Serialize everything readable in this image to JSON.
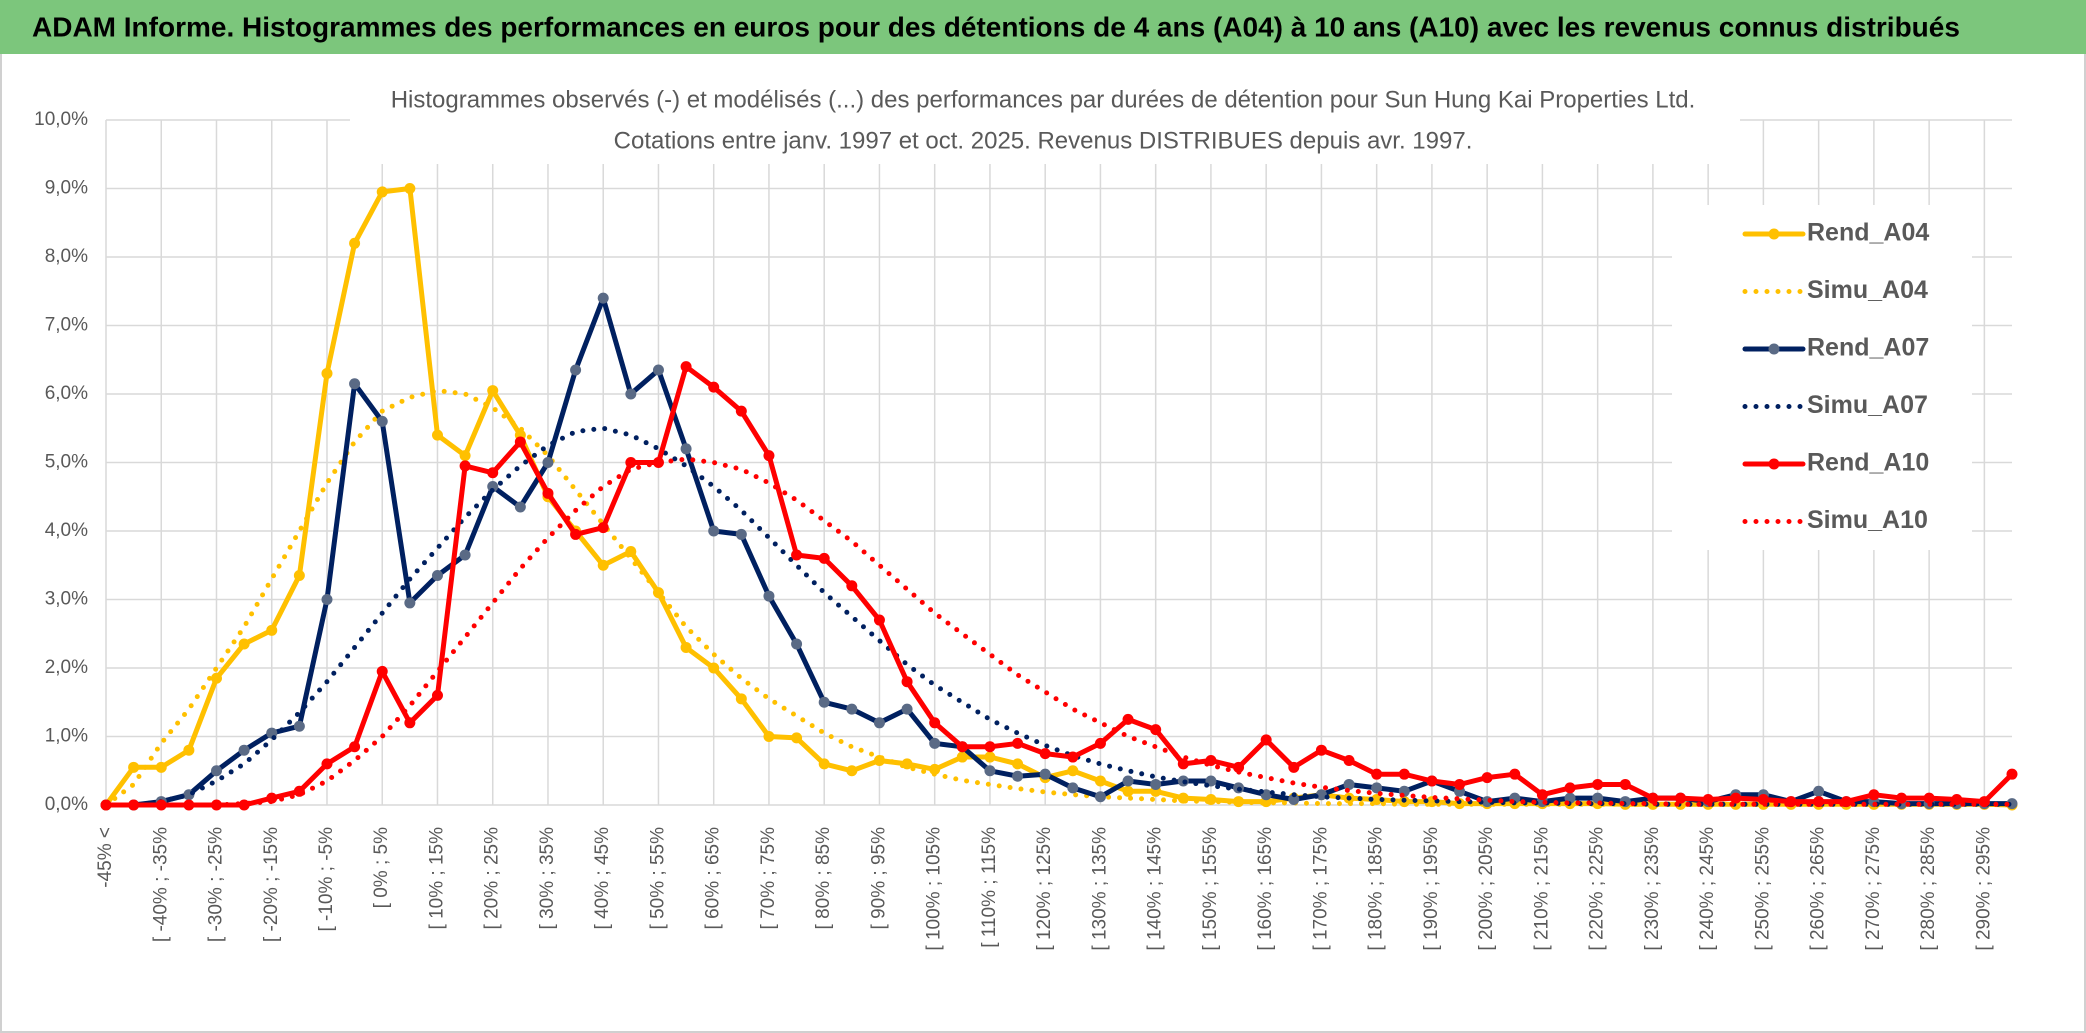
{
  "header": {
    "title": "ADAM Informe. Histogrammes des performances en euros pour des détentions de 4 ans (A04) à 10 ans (A10) avec les revenus connus distribués"
  },
  "chart_data": {
    "type": "line",
    "title": "Histogrammes observés (-) et modélisés (...) des performances par durées de détention pour Sun Hung Kai Properties Ltd.",
    "subtitle": "Cotations entre janv. 1997 et oct. 2025. Revenus DISTRIBUES depuis avr. 1997.",
    "categories": [
      "-45% <",
      null,
      "[ -40% ; -35%",
      null,
      "[ -30% ; -25%",
      null,
      "[ -20% ; -15%",
      null,
      "[ -10% ; -5%",
      null,
      "[ 0% ; 5%",
      null,
      "[ 10% ; 15%",
      null,
      "[ 20% ; 25%",
      null,
      "[ 30% ; 35%",
      null,
      "[ 40% ; 45%",
      null,
      "[ 50% ; 55%",
      null,
      "[ 60% ; 65%",
      null,
      "[ 70% ; 75%",
      null,
      "[ 80% ; 85%",
      null,
      "[ 90% ; 95%",
      null,
      "[ 100% ; 105%",
      null,
      "[ 110% ; 115%",
      null,
      "[ 120% ; 125%",
      null,
      "[ 130% ; 135%",
      null,
      "[ 140% ; 145%",
      null,
      "[ 150% ; 155%",
      null,
      "[ 160% ; 165%",
      null,
      "[ 170% ; 175%",
      null,
      "[ 180% ; 185%",
      null,
      "[ 190% ; 195%",
      null,
      "[ 200% ; 205%",
      null,
      "[ 210% ; 215%",
      null,
      "[ 220% ; 225%",
      null,
      "[ 230% ; 235%",
      null,
      "[ 240% ; 245%",
      null,
      "[ 250% ; 255%",
      null,
      "[ 260% ; 265%",
      null,
      "[ 270% ; 275%",
      null,
      "[ 280% ; 285%",
      null,
      "[ 290% ; 295%",
      null
    ],
    "series": [
      {
        "name": "Rend_A04",
        "color": "#ffc000",
        "style": "solid",
        "markers": true,
        "values": [
          0,
          0.55,
          0.55,
          0.8,
          1.85,
          2.35,
          2.55,
          3.35,
          6.3,
          8.2,
          8.95,
          9.0,
          5.4,
          5.1,
          6.05,
          5.4,
          4.5,
          4.0,
          3.5,
          3.7,
          3.1,
          2.3,
          2.0,
          1.55,
          1.0,
          0.98,
          0.6,
          0.5,
          0.65,
          0.6,
          0.52,
          0.7,
          0.7,
          0.6,
          0.4,
          0.5,
          0.35,
          0.2,
          0.2,
          0.1,
          0.08,
          0.05,
          0.05,
          0.1,
          0.15,
          0.1,
          0.08,
          0.05,
          0.05,
          0.02,
          0.02,
          0.02,
          0.02,
          0.02,
          0.02,
          0.01,
          0.01,
          0.01,
          0.01,
          0.01,
          0.01,
          0.01,
          0.01,
          0.01,
          0.01,
          0.01,
          0.01,
          0.01,
          0.01,
          0
        ]
      },
      {
        "name": "Simu_A04",
        "color": "#ffc000",
        "style": "dotted",
        "markers": false,
        "values": [
          0,
          0.3,
          0.9,
          1.4,
          2.0,
          2.6,
          3.3,
          4.0,
          4.7,
          5.3,
          5.75,
          5.95,
          6.05,
          6.0,
          5.8,
          5.5,
          5.1,
          4.6,
          4.1,
          3.6,
          3.1,
          2.6,
          2.2,
          1.85,
          1.55,
          1.3,
          1.05,
          0.85,
          0.7,
          0.55,
          0.45,
          0.36,
          0.3,
          0.24,
          0.19,
          0.15,
          0.12,
          0.1,
          0.08,
          0.06,
          0.05,
          0.04,
          0.03,
          0.03,
          0.02,
          0.02,
          0.02,
          0.01,
          0.01,
          0.01,
          0.01,
          0.01,
          0.01,
          0.01,
          0.01,
          0.01,
          0.01,
          0.01,
          0.01,
          0.01,
          0.01,
          0.01,
          0.01,
          0.01,
          0.01,
          0.01,
          0.01,
          0.01,
          0.01,
          0
        ]
      },
      {
        "name": "Rend_A07",
        "color": "#002060",
        "marker_color": "#5a6a85",
        "style": "solid",
        "markers": true,
        "values": [
          0,
          0,
          0.05,
          0.15,
          0.5,
          0.8,
          1.05,
          1.15,
          3.0,
          6.15,
          5.6,
          2.95,
          3.35,
          3.65,
          4.65,
          4.35,
          5.0,
          6.35,
          7.4,
          6.0,
          6.35,
          5.2,
          4.0,
          3.95,
          3.05,
          2.35,
          1.5,
          1.4,
          1.2,
          1.4,
          0.9,
          0.85,
          0.5,
          0.42,
          0.45,
          0.25,
          0.12,
          0.35,
          0.3,
          0.35,
          0.35,
          0.25,
          0.15,
          0.08,
          0.15,
          0.3,
          0.25,
          0.2,
          0.35,
          0.2,
          0.05,
          0.1,
          0.05,
          0.1,
          0.1,
          0.05,
          0.1,
          0.1,
          0.05,
          0.15,
          0.15,
          0.05,
          0.2,
          0.05,
          0.05,
          0.02,
          0.02,
          0.02,
          0.02,
          0.02
        ]
      },
      {
        "name": "Simu_A07",
        "color": "#002060",
        "style": "dotted",
        "markers": false,
        "values": [
          0,
          0,
          0.05,
          0.15,
          0.35,
          0.6,
          0.95,
          1.35,
          1.8,
          2.3,
          2.8,
          3.3,
          3.75,
          4.2,
          4.6,
          4.95,
          5.25,
          5.45,
          5.5,
          5.4,
          5.2,
          4.95,
          4.65,
          4.3,
          3.9,
          3.5,
          3.1,
          2.75,
          2.4,
          2.05,
          1.75,
          1.5,
          1.25,
          1.05,
          0.87,
          0.72,
          0.6,
          0.5,
          0.41,
          0.34,
          0.28,
          0.23,
          0.19,
          0.15,
          0.12,
          0.1,
          0.08,
          0.07,
          0.06,
          0.05,
          0.04,
          0.03,
          0.03,
          0.02,
          0.02,
          0.02,
          0.01,
          0.01,
          0.01,
          0.01,
          0.01,
          0.01,
          0.01,
          0.01,
          0.01,
          0.01,
          0.01,
          0.01,
          0.01,
          0.01
        ]
      },
      {
        "name": "Rend_A10",
        "color": "#ff0000",
        "style": "solid",
        "markers": true,
        "values": [
          0,
          0,
          0,
          0,
          0,
          0,
          0.1,
          0.2,
          0.6,
          0.85,
          1.95,
          1.2,
          1.6,
          4.95,
          4.85,
          5.3,
          4.55,
          3.95,
          4.05,
          5.0,
          5.0,
          6.4,
          6.1,
          5.75,
          5.1,
          3.65,
          3.6,
          3.2,
          2.7,
          1.8,
          1.2,
          0.85,
          0.85,
          0.9,
          0.75,
          0.7,
          0.9,
          1.25,
          1.1,
          0.6,
          0.65,
          0.55,
          0.95,
          0.55,
          0.8,
          0.65,
          0.45,
          0.45,
          0.35,
          0.3,
          0.4,
          0.45,
          0.15,
          0.25,
          0.3,
          0.3,
          0.1,
          0.1,
          0.08,
          0.1,
          0.08,
          0.05,
          0.05,
          0.05,
          0.15,
          0.1,
          0.1,
          0.08,
          0.05,
          0.45
        ]
      },
      {
        "name": "Simu_A10",
        "color": "#ff0000",
        "style": "dotted",
        "markers": false,
        "values": [
          0,
          0,
          0,
          0,
          0,
          0.02,
          0.05,
          0.15,
          0.35,
          0.65,
          1.0,
          1.45,
          1.95,
          2.45,
          2.95,
          3.45,
          3.9,
          4.3,
          4.65,
          4.9,
          5.0,
          5.05,
          5.0,
          4.9,
          4.7,
          4.45,
          4.15,
          3.85,
          3.5,
          3.15,
          2.8,
          2.5,
          2.2,
          1.9,
          1.65,
          1.4,
          1.2,
          1.0,
          0.85,
          0.7,
          0.58,
          0.48,
          0.4,
          0.32,
          0.26,
          0.21,
          0.17,
          0.14,
          0.11,
          0.09,
          0.07,
          0.05,
          0.04,
          0.03,
          0.03,
          0.02,
          0.02,
          0.01,
          0.01,
          0.01,
          0.01,
          0.01,
          0.01,
          0.01,
          0.01,
          0.01,
          0.01,
          0.01,
          0.01,
          0.01
        ]
      }
    ],
    "ylim": [
      0,
      10
    ],
    "yticks": [
      {
        "value": 0,
        "label": "0,0%"
      },
      {
        "value": 1,
        "label": "1,0%"
      },
      {
        "value": 2,
        "label": "2,0%"
      },
      {
        "value": 3,
        "label": "3,0%"
      },
      {
        "value": 4,
        "label": "4,0%"
      },
      {
        "value": 5,
        "label": "5,0%"
      },
      {
        "value": 6,
        "label": "6,0%"
      },
      {
        "value": 7,
        "label": "7,0%"
      },
      {
        "value": 8,
        "label": "8,0%"
      },
      {
        "value": 9,
        "label": "9,0%"
      },
      {
        "value": 10,
        "label": "10,0%"
      }
    ],
    "grid": true,
    "legend": "right"
  }
}
